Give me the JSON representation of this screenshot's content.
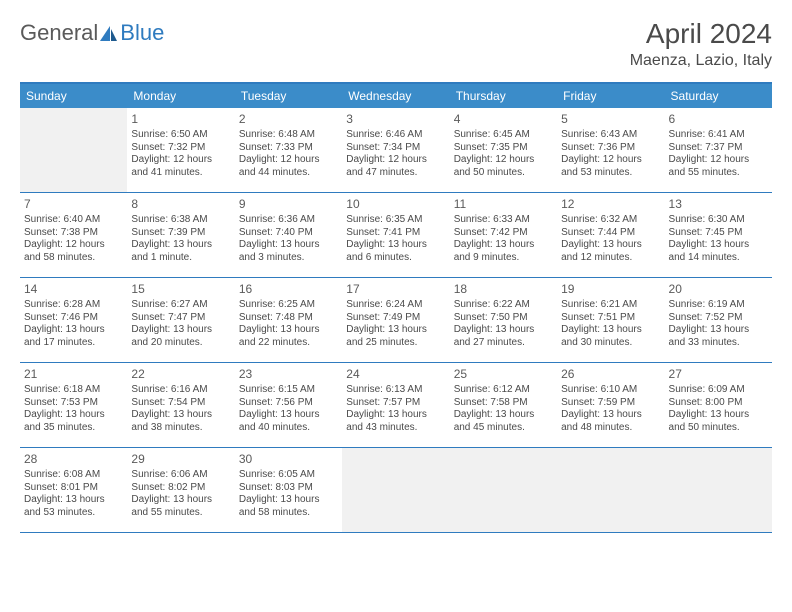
{
  "logo": {
    "text1": "General",
    "text2": "Blue"
  },
  "title": "April 2024",
  "subtitle": "Maenza, Lazio, Italy",
  "colors": {
    "accent": "#3b8cc9",
    "border": "#2f7bbf",
    "emptyCell": "#f1f1f1",
    "text": "#4a4a4a",
    "logoGray": "#5a5a5a",
    "logoBlue": "#2f7bbf"
  },
  "daysOfWeek": [
    "Sunday",
    "Monday",
    "Tuesday",
    "Wednesday",
    "Thursday",
    "Friday",
    "Saturday"
  ],
  "weeks": [
    [
      {
        "empty": true
      },
      {
        "day": "1",
        "sunrise": "Sunrise: 6:50 AM",
        "sunset": "Sunset: 7:32 PM",
        "d1": "Daylight: 12 hours",
        "d2": "and 41 minutes."
      },
      {
        "day": "2",
        "sunrise": "Sunrise: 6:48 AM",
        "sunset": "Sunset: 7:33 PM",
        "d1": "Daylight: 12 hours",
        "d2": "and 44 minutes."
      },
      {
        "day": "3",
        "sunrise": "Sunrise: 6:46 AM",
        "sunset": "Sunset: 7:34 PM",
        "d1": "Daylight: 12 hours",
        "d2": "and 47 minutes."
      },
      {
        "day": "4",
        "sunrise": "Sunrise: 6:45 AM",
        "sunset": "Sunset: 7:35 PM",
        "d1": "Daylight: 12 hours",
        "d2": "and 50 minutes."
      },
      {
        "day": "5",
        "sunrise": "Sunrise: 6:43 AM",
        "sunset": "Sunset: 7:36 PM",
        "d1": "Daylight: 12 hours",
        "d2": "and 53 minutes."
      },
      {
        "day": "6",
        "sunrise": "Sunrise: 6:41 AM",
        "sunset": "Sunset: 7:37 PM",
        "d1": "Daylight: 12 hours",
        "d2": "and 55 minutes."
      }
    ],
    [
      {
        "day": "7",
        "sunrise": "Sunrise: 6:40 AM",
        "sunset": "Sunset: 7:38 PM",
        "d1": "Daylight: 12 hours",
        "d2": "and 58 minutes."
      },
      {
        "day": "8",
        "sunrise": "Sunrise: 6:38 AM",
        "sunset": "Sunset: 7:39 PM",
        "d1": "Daylight: 13 hours",
        "d2": "and 1 minute."
      },
      {
        "day": "9",
        "sunrise": "Sunrise: 6:36 AM",
        "sunset": "Sunset: 7:40 PM",
        "d1": "Daylight: 13 hours",
        "d2": "and 3 minutes."
      },
      {
        "day": "10",
        "sunrise": "Sunrise: 6:35 AM",
        "sunset": "Sunset: 7:41 PM",
        "d1": "Daylight: 13 hours",
        "d2": "and 6 minutes."
      },
      {
        "day": "11",
        "sunrise": "Sunrise: 6:33 AM",
        "sunset": "Sunset: 7:42 PM",
        "d1": "Daylight: 13 hours",
        "d2": "and 9 minutes."
      },
      {
        "day": "12",
        "sunrise": "Sunrise: 6:32 AM",
        "sunset": "Sunset: 7:44 PM",
        "d1": "Daylight: 13 hours",
        "d2": "and 12 minutes."
      },
      {
        "day": "13",
        "sunrise": "Sunrise: 6:30 AM",
        "sunset": "Sunset: 7:45 PM",
        "d1": "Daylight: 13 hours",
        "d2": "and 14 minutes."
      }
    ],
    [
      {
        "day": "14",
        "sunrise": "Sunrise: 6:28 AM",
        "sunset": "Sunset: 7:46 PM",
        "d1": "Daylight: 13 hours",
        "d2": "and 17 minutes."
      },
      {
        "day": "15",
        "sunrise": "Sunrise: 6:27 AM",
        "sunset": "Sunset: 7:47 PM",
        "d1": "Daylight: 13 hours",
        "d2": "and 20 minutes."
      },
      {
        "day": "16",
        "sunrise": "Sunrise: 6:25 AM",
        "sunset": "Sunset: 7:48 PM",
        "d1": "Daylight: 13 hours",
        "d2": "and 22 minutes."
      },
      {
        "day": "17",
        "sunrise": "Sunrise: 6:24 AM",
        "sunset": "Sunset: 7:49 PM",
        "d1": "Daylight: 13 hours",
        "d2": "and 25 minutes."
      },
      {
        "day": "18",
        "sunrise": "Sunrise: 6:22 AM",
        "sunset": "Sunset: 7:50 PM",
        "d1": "Daylight: 13 hours",
        "d2": "and 27 minutes."
      },
      {
        "day": "19",
        "sunrise": "Sunrise: 6:21 AM",
        "sunset": "Sunset: 7:51 PM",
        "d1": "Daylight: 13 hours",
        "d2": "and 30 minutes."
      },
      {
        "day": "20",
        "sunrise": "Sunrise: 6:19 AM",
        "sunset": "Sunset: 7:52 PM",
        "d1": "Daylight: 13 hours",
        "d2": "and 33 minutes."
      }
    ],
    [
      {
        "day": "21",
        "sunrise": "Sunrise: 6:18 AM",
        "sunset": "Sunset: 7:53 PM",
        "d1": "Daylight: 13 hours",
        "d2": "and 35 minutes."
      },
      {
        "day": "22",
        "sunrise": "Sunrise: 6:16 AM",
        "sunset": "Sunset: 7:54 PM",
        "d1": "Daylight: 13 hours",
        "d2": "and 38 minutes."
      },
      {
        "day": "23",
        "sunrise": "Sunrise: 6:15 AM",
        "sunset": "Sunset: 7:56 PM",
        "d1": "Daylight: 13 hours",
        "d2": "and 40 minutes."
      },
      {
        "day": "24",
        "sunrise": "Sunrise: 6:13 AM",
        "sunset": "Sunset: 7:57 PM",
        "d1": "Daylight: 13 hours",
        "d2": "and 43 minutes."
      },
      {
        "day": "25",
        "sunrise": "Sunrise: 6:12 AM",
        "sunset": "Sunset: 7:58 PM",
        "d1": "Daylight: 13 hours",
        "d2": "and 45 minutes."
      },
      {
        "day": "26",
        "sunrise": "Sunrise: 6:10 AM",
        "sunset": "Sunset: 7:59 PM",
        "d1": "Daylight: 13 hours",
        "d2": "and 48 minutes."
      },
      {
        "day": "27",
        "sunrise": "Sunrise: 6:09 AM",
        "sunset": "Sunset: 8:00 PM",
        "d1": "Daylight: 13 hours",
        "d2": "and 50 minutes."
      }
    ],
    [
      {
        "day": "28",
        "sunrise": "Sunrise: 6:08 AM",
        "sunset": "Sunset: 8:01 PM",
        "d1": "Daylight: 13 hours",
        "d2": "and 53 minutes."
      },
      {
        "day": "29",
        "sunrise": "Sunrise: 6:06 AM",
        "sunset": "Sunset: 8:02 PM",
        "d1": "Daylight: 13 hours",
        "d2": "and 55 minutes."
      },
      {
        "day": "30",
        "sunrise": "Sunrise: 6:05 AM",
        "sunset": "Sunset: 8:03 PM",
        "d1": "Daylight: 13 hours",
        "d2": "and 58 minutes."
      },
      {
        "empty": true
      },
      {
        "empty": true
      },
      {
        "empty": true
      },
      {
        "empty": true
      }
    ]
  ]
}
